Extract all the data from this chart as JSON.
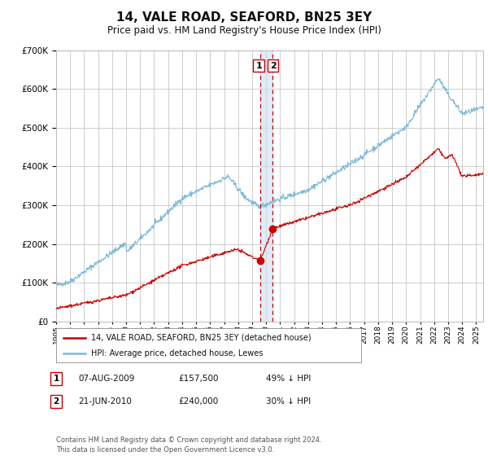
{
  "title": "14, VALE ROAD, SEAFORD, BN25 3EY",
  "subtitle": "Price paid vs. HM Land Registry's House Price Index (HPI)",
  "title_fontsize": 11,
  "subtitle_fontsize": 8.5,
  "legend_line1": "14, VALE ROAD, SEAFORD, BN25 3EY (detached house)",
  "legend_line2": "HPI: Average price, detached house, Lewes",
  "transaction1_label": "1",
  "transaction1_date": "07-AUG-2009",
  "transaction1_price": "£157,500",
  "transaction1_hpi": "49% ↓ HPI",
  "transaction2_label": "2",
  "transaction2_date": "21-JUN-2010",
  "transaction2_price": "£240,000",
  "transaction2_hpi": "30% ↓ HPI",
  "footer": "Contains HM Land Registry data © Crown copyright and database right 2024.\nThis data is licensed under the Open Government Licence v3.0.",
  "hpi_color": "#7ab8d9",
  "price_color": "#cc0000",
  "marker_color": "#cc0000",
  "vline_color": "#cc0000",
  "span_color": "#ccdff0",
  "grid_color": "#bbbbbb",
  "background_color": "#ffffff",
  "transaction1_x": 2009.59,
  "transaction1_y": 157500,
  "transaction2_x": 2010.47,
  "transaction2_y": 240000,
  "ylim": [
    0,
    700000
  ],
  "xlim_start": 1995.0,
  "xlim_end": 2025.5
}
